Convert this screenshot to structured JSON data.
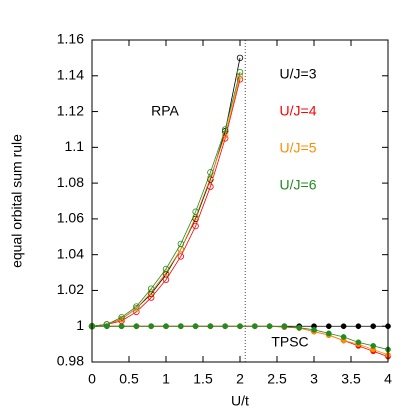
{
  "chart_data": {
    "type": "line",
    "x_label": "U/t",
    "y_label": "equal orbital sum rule",
    "xlim": [
      0,
      4
    ],
    "ylim": [
      0.98,
      1.16
    ],
    "xticks": [
      0,
      0.5,
      1,
      1.5,
      2,
      2.5,
      3,
      3.5,
      4
    ],
    "yticks": [
      0.98,
      1,
      1.02,
      1.04,
      1.06,
      1.08,
      1.1,
      1.12,
      1.14,
      1.16
    ],
    "vline": 2.07,
    "groups": [
      {
        "label": "RPA",
        "marker": "open",
        "x": [
          0,
          0.2,
          0.4,
          0.6,
          0.8,
          1,
          1.2,
          1.4,
          1.6,
          1.8,
          2
        ]
      },
      {
        "label": "TPSC",
        "marker": "filled",
        "x": [
          0,
          0.2,
          0.4,
          0.6,
          0.8,
          1,
          1.2,
          1.4,
          1.6,
          1.8,
          2,
          2.2,
          2.4,
          2.6,
          2.8,
          3,
          3.2,
          3.4,
          3.6,
          3.8,
          4
        ]
      }
    ],
    "series": [
      {
        "name": "U/J=3",
        "color": "#000000",
        "values": [
          [
            1.0,
            1.001,
            1.004,
            1.01,
            1.018,
            1.029,
            1.043,
            1.06,
            1.082,
            1.109,
            1.15
          ],
          [
            1.0,
            1.0,
            1.0,
            1.0,
            1.0,
            1.0,
            1.0,
            1.0,
            1.0,
            1.0,
            1.0,
            1.0,
            1.0,
            1.0,
            1.0,
            1.0,
            1.0,
            1.0,
            1.0,
            1.0,
            1.0
          ]
        ]
      },
      {
        "name": "U/J=4",
        "color": "#ff0000",
        "values": [
          [
            1.0,
            1.001,
            1.003,
            1.008,
            1.016,
            1.026,
            1.039,
            1.056,
            1.078,
            1.105,
            1.138
          ],
          [
            1.0,
            1.0,
            1.0,
            1.0,
            1.0,
            1.0,
            1.0,
            1.0,
            1.0,
            1.0,
            1.0,
            1.0,
            1.0,
            0.9995,
            0.999,
            0.997,
            0.995,
            0.992,
            0.989,
            0.986,
            0.983
          ]
        ]
      },
      {
        "name": "U/J=5",
        "color": "#ff8c00",
        "values": [
          [
            1.0,
            1.001,
            1.004,
            1.01,
            1.019,
            1.03,
            1.043,
            1.061,
            1.083,
            1.107,
            1.14
          ],
          [
            1.0,
            1.0,
            1.0,
            1.0,
            1.0,
            1.0,
            1.0,
            1.0,
            1.0,
            1.0,
            1.0,
            1.0,
            1.0,
            0.9996,
            0.999,
            0.997,
            0.995,
            0.992,
            0.99,
            0.987,
            0.984
          ]
        ]
      },
      {
        "name": "U/J=6",
        "color": "#228b22",
        "values": [
          [
            1.0,
            1.001,
            1.005,
            1.011,
            1.021,
            1.032,
            1.046,
            1.064,
            1.086,
            1.11,
            1.142
          ],
          [
            1.0,
            1.0,
            1.0,
            1.0,
            1.0,
            1.0,
            1.0,
            1.0,
            1.0,
            1.0,
            1.0,
            1.0,
            1.0,
            0.9998,
            0.9992,
            0.998,
            0.996,
            0.994,
            0.991,
            0.989,
            0.987
          ]
        ]
      }
    ]
  }
}
